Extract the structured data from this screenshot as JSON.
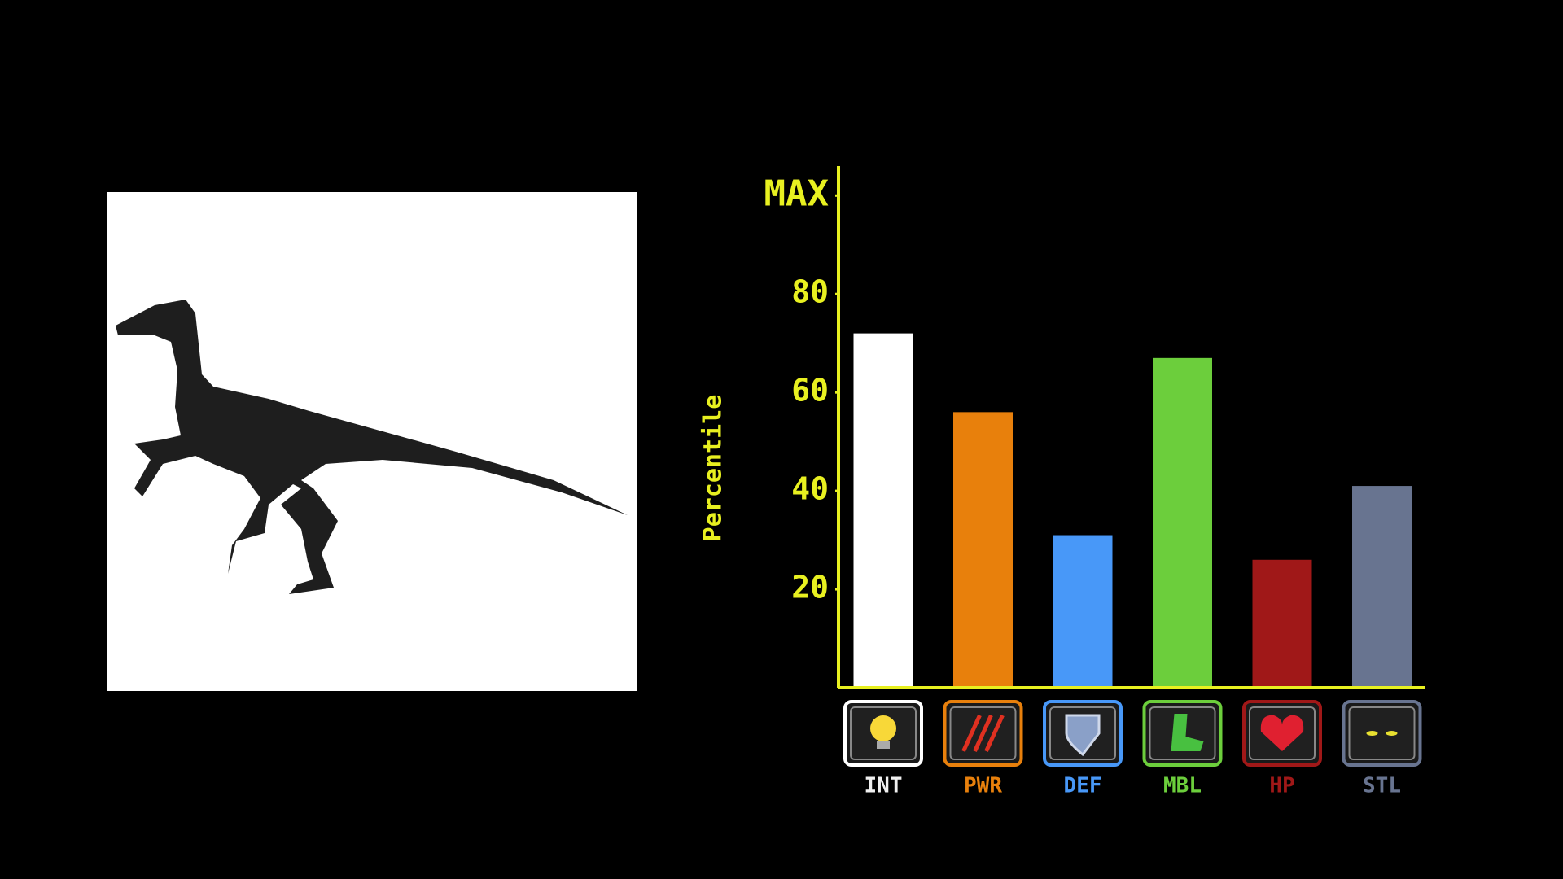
{
  "chart_data": {
    "type": "bar",
    "categories": [
      "INT",
      "PWR",
      "DEF",
      "MBL",
      "HP",
      "STL"
    ],
    "values": [
      72,
      56,
      31,
      67,
      26,
      41
    ],
    "colors": [
      "#ffffff",
      "#e8800c",
      "#4898f8",
      "#6cce3c",
      "#a01818",
      "#687490"
    ],
    "y_label": "Percentile",
    "ylim": [
      0,
      106
    ],
    "yticks": [
      20,
      40,
      60,
      80,
      {
        "value": 100,
        "label": "MAX"
      }
    ],
    "axis_color": "#e8f020"
  }
}
